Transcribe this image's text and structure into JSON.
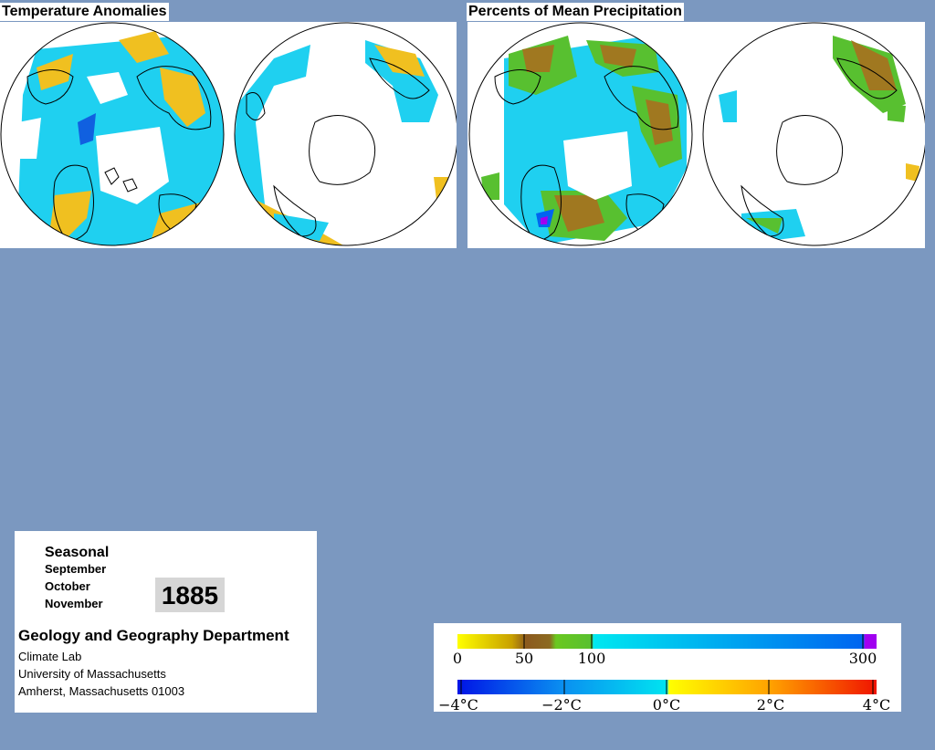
{
  "panels": {
    "temperature": {
      "title": "Temperature Anomalies"
    },
    "precipitation": {
      "title": "Percents of Mean Precipitation"
    }
  },
  "info": {
    "season": "Seasonal",
    "months": [
      "September",
      "October",
      "November"
    ],
    "year": "1885",
    "department": "Geology and Geography Department",
    "lab": "Climate Lab",
    "university": "University of Massachusetts",
    "address": "Amherst, Massachusetts 01003"
  },
  "legend": {
    "precipitation": {
      "labels": [
        "0",
        "50",
        "100",
        "300"
      ],
      "colors": [
        "#ffff00",
        "#c8a000",
        "#8c5a1e",
        "#6ac820",
        "#00e0f0",
        "#0064f0",
        "#a000f0"
      ]
    },
    "temperature": {
      "labels": [
        "−4°C",
        "−2°C",
        "0°C",
        "2°C",
        "4°C"
      ],
      "colors": [
        "#0014e6",
        "#0a8ff0",
        "#00e4f0",
        "#ffff00",
        "#ffa000",
        "#f01400"
      ]
    }
  },
  "colors": {
    "background": "#7b98c0",
    "land_outline": "#000000",
    "cyan": "#1fd0f0",
    "orange": "#f0c020",
    "blue": "#1060e0",
    "green": "#58c030",
    "brown": "#a07820"
  }
}
